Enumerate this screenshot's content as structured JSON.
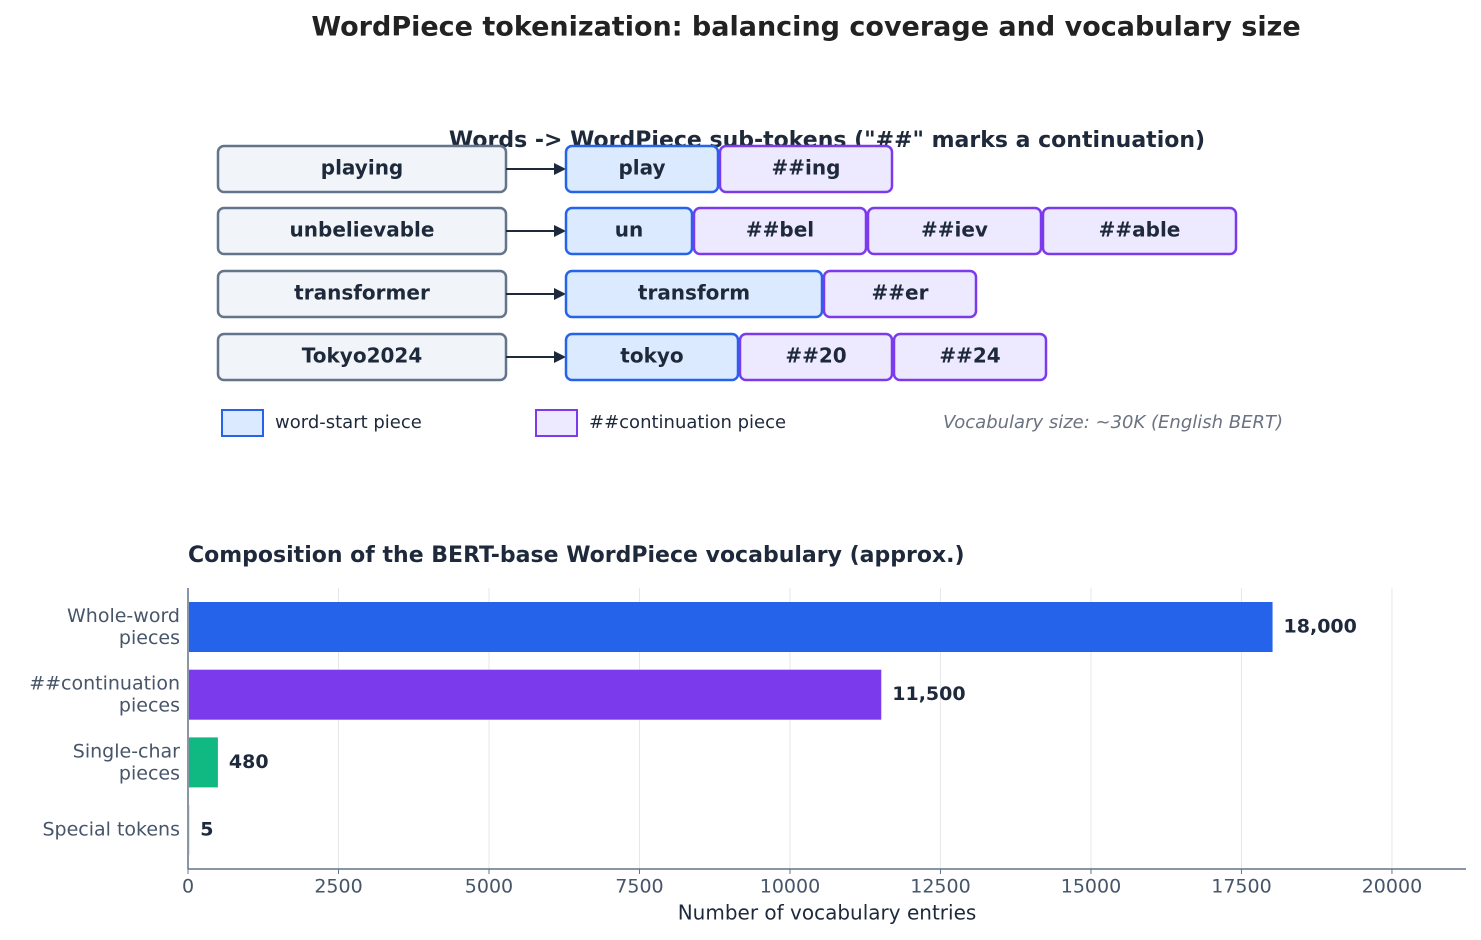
{
  "title": "WordPiece tokenization: balancing coverage and vocabulary size",
  "diagram": {
    "title": "Words -> WordPiece sub-tokens (\"##\" marks a continuation)",
    "rows": [
      {
        "word": "playing",
        "pieces": [
          "play",
          "##ing"
        ]
      },
      {
        "word": "unbelievable",
        "pieces": [
          "un",
          "##bel",
          "##iev",
          "##able"
        ]
      },
      {
        "word": "transformer",
        "pieces": [
          "transform",
          "##er"
        ]
      },
      {
        "word": "Tokyo2024",
        "pieces": [
          "tokyo",
          "##20",
          "##24"
        ]
      }
    ],
    "legend": [
      "word-start piece",
      "##continuation piece"
    ],
    "note": "Vocabulary size: ~30K (English BERT)"
  },
  "chart_data": {
    "type": "bar",
    "orientation": "horizontal",
    "title": "Composition of the BERT-base WordPiece vocabulary (approx.)",
    "categories": [
      "Whole-word\npieces",
      "##continuation\npieces",
      "Single-char\npieces",
      "Special tokens"
    ],
    "values": [
      18000,
      11500,
      480,
      5
    ],
    "value_labels": [
      "18,000",
      "11,500",
      "480",
      "5"
    ],
    "colors": [
      "#2563eb",
      "#7c3aed",
      "#10b981",
      "#f59e0b"
    ],
    "xlim": [
      0,
      21230
    ],
    "xticks": [
      0,
      2500,
      5000,
      7500,
      10000,
      12500,
      15000,
      17500,
      20000
    ],
    "xlabel": "Number of vocabulary entries",
    "grid": true
  }
}
